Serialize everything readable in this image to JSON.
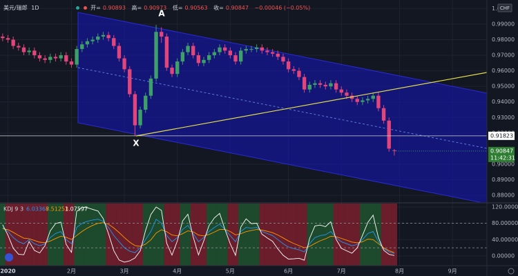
{
  "header": {
    "symbol": "美元/瑞郎",
    "interval": "1D",
    "ohlc_labels": [
      "开=",
      "高=",
      "低=",
      "收="
    ],
    "change": "−0.00046 (−0.05%)",
    "currency": "CHF",
    "countdown": "11:42:31"
  },
  "chart_data": [
    {
      "type": "candlestick",
      "categories": [
        null,
        "2020",
        null,
        null,
        null,
        null,
        null,
        null,
        null,
        null,
        null,
        null,
        null,
        "2月",
        null,
        null,
        null,
        null,
        null,
        null,
        null,
        null,
        null,
        "3月",
        null,
        null,
        null,
        null,
        null,
        null,
        null,
        null,
        null,
        "4月",
        null,
        null,
        null,
        null,
        null,
        null,
        null,
        null,
        null,
        "5月",
        null,
        null,
        null,
        null,
        null,
        null,
        null,
        null,
        null,
        null,
        "6月",
        null,
        null,
        null,
        null,
        null,
        null,
        null,
        null,
        null,
        "7月",
        null,
        null,
        null,
        null,
        null,
        null,
        null,
        null,
        null,
        null,
        "8月",
        null,
        null,
        null,
        null,
        null,
        null,
        null,
        null,
        null,
        "9月",
        null,
        null,
        null,
        null,
        null,
        null
      ],
      "open": [
        0.982,
        0.981,
        0.98,
        0.976,
        0.975,
        0.972,
        0.973,
        0.97,
        0.968,
        0.967,
        0.969,
        0.968,
        0.97,
        0.966,
        0.964,
        0.974,
        0.977,
        0.979,
        0.98,
        0.982,
        0.983,
        0.981,
        0.976,
        0.968,
        0.961,
        0.945,
        0.925,
        0.935,
        0.944,
        0.955,
        0.985,
        0.982,
        0.962,
        0.958,
        0.966,
        0.972,
        0.976,
        0.97,
        0.965,
        0.967,
        0.97,
        0.972,
        0.975,
        0.973,
        0.97,
        0.966,
        0.973,
        0.974,
        0.974,
        0.975,
        0.973,
        0.972,
        0.971,
        0.969,
        0.966,
        0.961,
        0.96,
        0.956,
        0.948,
        0.951,
        0.952,
        0.951,
        0.95,
        0.952,
        0.948,
        0.946,
        0.944,
        0.942,
        0.94,
        0.941,
        0.942,
        0.944,
        0.936,
        0.928,
        0.90893,
        null,
        null,
        null,
        null,
        null,
        null,
        null,
        null,
        null,
        null,
        null,
        null,
        null,
        null,
        null,
        null,
        null
      ],
      "high": [
        0.984,
        0.983,
        0.982,
        0.978,
        0.977,
        0.975,
        0.975,
        0.972,
        0.97,
        0.971,
        0.971,
        0.972,
        0.972,
        0.968,
        0.976,
        0.979,
        0.981,
        0.982,
        0.984,
        0.985,
        0.985,
        0.983,
        0.978,
        0.97,
        0.963,
        0.947,
        0.937,
        0.946,
        0.957,
        0.9895,
        0.988,
        0.984,
        0.964,
        0.968,
        0.974,
        0.978,
        0.978,
        0.972,
        0.969,
        0.972,
        0.974,
        0.977,
        0.977,
        0.975,
        0.972,
        0.975,
        0.976,
        0.976,
        0.977,
        0.977,
        0.975,
        0.974,
        0.973,
        0.971,
        0.968,
        0.963,
        0.962,
        0.958,
        0.953,
        0.954,
        0.954,
        0.953,
        0.954,
        0.954,
        0.95,
        0.948,
        0.946,
        0.944,
        0.943,
        0.944,
        0.946,
        0.946,
        0.938,
        0.93,
        0.90973,
        null,
        null,
        null,
        null,
        null,
        null,
        null,
        null,
        null,
        null,
        null,
        null,
        null,
        null,
        null,
        null,
        null
      ],
      "low": [
        0.979,
        0.978,
        0.974,
        0.973,
        0.97,
        0.97,
        0.968,
        0.966,
        0.965,
        0.965,
        0.966,
        0.966,
        0.964,
        0.962,
        0.962,
        0.972,
        0.975,
        0.977,
        0.978,
        0.98,
        0.979,
        0.974,
        0.966,
        0.959,
        0.943,
        0.91823,
        0.923,
        0.933,
        0.942,
        0.953,
        0.978,
        0.96,
        0.956,
        0.956,
        0.964,
        0.97,
        0.968,
        0.963,
        0.963,
        0.965,
        0.968,
        0.97,
        0.971,
        0.968,
        0.964,
        0.964,
        0.971,
        0.972,
        0.972,
        0.971,
        0.97,
        0.969,
        0.967,
        0.964,
        0.959,
        0.958,
        0.954,
        0.946,
        0.946,
        0.949,
        0.949,
        0.948,
        0.948,
        0.946,
        0.944,
        0.942,
        0.94,
        0.938,
        0.938,
        0.939,
        0.94,
        0.934,
        0.926,
        0.908,
        0.90563,
        null,
        null,
        null,
        null,
        null,
        null,
        null,
        null,
        null,
        null,
        null,
        null,
        null,
        null,
        null,
        null,
        null
      ],
      "close": [
        0.981,
        0.98,
        0.976,
        0.975,
        0.972,
        0.973,
        0.97,
        0.968,
        0.967,
        0.969,
        0.968,
        0.97,
        0.966,
        0.964,
        0.974,
        0.977,
        0.979,
        0.98,
        0.982,
        0.983,
        0.981,
        0.976,
        0.968,
        0.961,
        0.945,
        0.925,
        0.935,
        0.944,
        0.955,
        0.985,
        0.982,
        0.962,
        0.958,
        0.966,
        0.972,
        0.976,
        0.97,
        0.965,
        0.967,
        0.97,
        0.972,
        0.975,
        0.973,
        0.97,
        0.966,
        0.973,
        0.974,
        0.974,
        0.975,
        0.973,
        0.972,
        0.971,
        0.969,
        0.966,
        0.961,
        0.96,
        0.956,
        0.948,
        0.951,
        0.952,
        0.951,
        0.95,
        0.952,
        0.948,
        0.946,
        0.944,
        0.942,
        0.94,
        0.941,
        0.942,
        0.944,
        0.936,
        0.928,
        0.91,
        0.90847,
        null,
        null,
        null,
        null,
        null,
        null,
        null,
        null,
        null,
        null,
        null,
        null,
        null,
        null,
        null,
        null,
        null
      ],
      "up_color": "#3f9f6a",
      "down_color": "#e0457b",
      "ylim": [
        0.8756,
        1.0055
      ],
      "yticks": [
        {
          "value": 1,
          "label": "1.0"
        },
        {
          "value": 0.99,
          "label": "0.99000"
        },
        {
          "value": 0.98,
          "label": "0.98000"
        },
        {
          "value": 0.97,
          "label": "0.97000"
        },
        {
          "value": 0.96,
          "label": "0.96000"
        },
        {
          "value": 0.95,
          "label": "0.95000"
        },
        {
          "value": 0.94,
          "label": "0.94000"
        },
        {
          "value": 0.93,
          "label": "0.93000"
        },
        {
          "value": 0.92,
          "label": "0.92000"
        },
        {
          "value": 0.9,
          "label": "0.90000"
        },
        {
          "value": 0.89,
          "label": "0.89000"
        },
        {
          "value": 0.88,
          "label": "0.88000"
        }
      ],
      "grid": true,
      "hline": 0.91823,
      "annotations": [
        "A",
        "X"
      ]
    },
    {
      "type": "line",
      "title": "KDJ 9 3",
      "series": [
        {
          "color": "#2196f3",
          "values": [
            70,
            60,
            45,
            35,
            30,
            40,
            30,
            25,
            30,
            45,
            55,
            60,
            40,
            30,
            70,
            80,
            85,
            88,
            90,
            85,
            70,
            50,
            35,
            20,
            12,
            8,
            20,
            40,
            60,
            90,
            80,
            50,
            35,
            45,
            65,
            75,
            55,
            35,
            45,
            60,
            70,
            78,
            65,
            50,
            35,
            60,
            70,
            68,
            70,
            60,
            55,
            50,
            40,
            30,
            22,
            18,
            15,
            10,
            30,
            45,
            50,
            52,
            60,
            45,
            35,
            30,
            25,
            28,
            40,
            55,
            60,
            35,
            18,
            10,
            6.03367,
            null,
            null,
            null,
            null,
            null,
            null,
            null,
            null,
            null,
            null,
            null,
            null,
            null,
            null,
            null,
            null,
            null
          ]
        },
        {
          "color": "#ff9800",
          "values": [
            66.7,
            64.5,
            58,
            50.3,
            43.5,
            42.3,
            38.2,
            33.8,
            32.5,
            36.7,
            42.8,
            48.5,
            45.7,
            40.5,
            50.3,
            60.2,
            68.4,
            74.9,
            79.9,
            81.6,
            77.7,
            68.5,
            57.4,
            45,
            34,
            25.4,
            23.6,
            29,
            39.3,
            56.2,
            64.2,
            59.5,
            51.4,
            49.3,
            54.6,
            61.4,
            59.2,
            51.2,
            49.1,
            52.7,
            58.4,
            64.9,
            65,
            60,
            51.7,
            54.5,
            59.6,
            62.4,
            64.9,
            63.3,
            60.5,
            57,
            51.3,
            44.2,
            36.8,
            30.5,
            25.3,
            20.2,
            23.5,
            30.7,
            37.2,
            42.1,
            48.1,
            47.1,
            43.1,
            38.7,
            34.1,
            32,
            34.6,
            41.4,
            40,
            30,
            20,
            13,
            8.51253,
            null,
            null,
            null,
            null,
            null,
            null,
            null,
            null,
            null,
            null,
            null,
            null,
            null,
            null,
            null,
            null,
            null
          ]
        },
        {
          "color": "#ffffff",
          "values": [
            76.6,
            51,
            19,
            4.4,
            3,
            35.4,
            13.6,
            7.4,
            25,
            61.6,
            79.4,
            83,
            28.6,
            9,
            109.4,
            119.6,
            118.2,
            114.2,
            110.2,
            91.8,
            54.6,
            13,
            -9.8,
            -15,
            -12,
            -5,
            12.8,
            62,
            101.4,
            120,
            111.6,
            31,
            2.2,
            36.4,
            85.8,
            102.2,
            46.6,
            2.6,
            36.8,
            74.6,
            93.2,
            104.2,
            65,
            30,
            1.6,
            71,
            90.8,
            79.2,
            80.2,
            53.4,
            44,
            36,
            17.4,
            1.6,
            -7.6,
            -7,
            -5.6,
            -10.4,
            43,
            73.6,
            75.6,
            71.8,
            83.8,
            40.8,
            18.8,
            12.6,
            6.8,
            20,
            50.8,
            82.2,
            100,
            45,
            14,
            4,
            1.07597,
            null,
            null,
            null,
            null,
            null,
            null,
            null,
            null,
            null,
            null,
            null,
            null,
            null,
            null,
            null,
            null,
            null
          ]
        }
      ],
      "ylim": [
        -23.7,
        128.4
      ],
      "yticks": [
        {
          "value": 0,
          "label": "0.00000"
        },
        {
          "value": 40,
          "label": "40.00000"
        },
        {
          "value": 80,
          "label": "80.00000"
        },
        {
          "value": 120,
          "label": "120.00000"
        }
      ],
      "guide_levels": [
        80,
        20
      ],
      "up_zone_color": "#1d4a2c",
      "down_zone_color": "#6a1d2b"
    }
  ]
}
